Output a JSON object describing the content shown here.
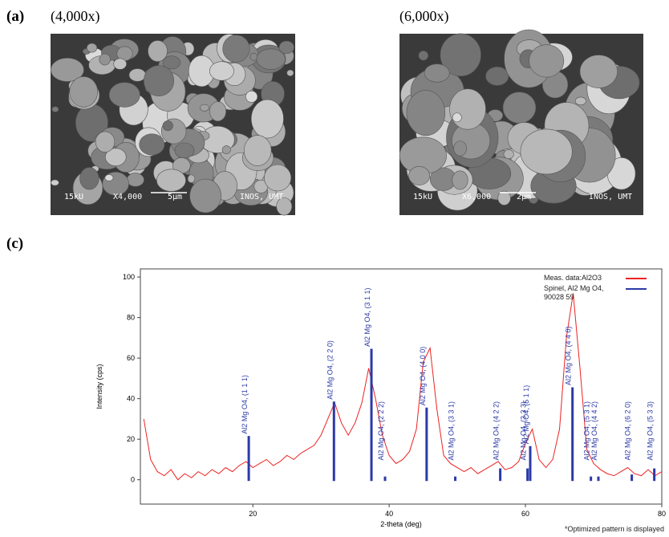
{
  "panels": {
    "a": "(a)",
    "c": "(c)"
  },
  "images": [
    {
      "magnification": "(4,000x)",
      "overlay": [
        "15kU",
        "X4,000",
        "5µm",
        "INOS, UMT"
      ]
    },
    {
      "magnification": "(6,000x)",
      "overlay": [
        "15kU",
        "X6,000",
        "2µm",
        "INOS, UMT"
      ]
    }
  ],
  "chart_data": {
    "type": "line",
    "xlabel": "2-theta (deg)",
    "ylabel": "Intensity (cps)",
    "footnote": "*Optimized pattern is displayed",
    "xlim": [
      3.5,
      80
    ],
    "ylim": [
      -12,
      104
    ],
    "xticks": [
      20,
      40,
      60,
      80
    ],
    "yticks": [
      0,
      20,
      40,
      60,
      80,
      100
    ],
    "grid": false,
    "legend": "top-right",
    "series": [
      {
        "name": "Meas. data:Al2O3",
        "color": "#ee2222",
        "type": "line",
        "x": [
          4,
          5,
          6,
          7,
          8,
          9,
          10,
          11,
          12,
          13,
          14,
          15,
          16,
          17,
          18,
          19,
          20,
          21,
          22,
          23,
          24,
          25,
          26,
          27,
          28,
          29,
          30,
          31,
          32,
          33,
          34,
          35,
          36,
          37,
          38,
          39,
          40,
          41,
          42,
          43,
          44,
          45,
          46,
          47,
          48,
          49,
          50,
          51,
          52,
          53,
          54,
          55,
          56,
          57,
          58,
          59,
          60,
          61,
          62,
          63,
          64,
          65,
          66,
          67,
          68,
          69,
          70,
          71,
          72,
          73,
          74,
          75,
          76,
          77,
          78,
          79,
          80
        ],
        "values": [
          30,
          10,
          4,
          2,
          5,
          0,
          3,
          1,
          4,
          2,
          5,
          3,
          6,
          4,
          7,
          9,
          6,
          8,
          10,
          7,
          9,
          12,
          10,
          13,
          15,
          17,
          22,
          30,
          38,
          28,
          22,
          28,
          38,
          55,
          40,
          22,
          12,
          8,
          10,
          14,
          25,
          58,
          65,
          35,
          12,
          8,
          6,
          4,
          6,
          3,
          5,
          7,
          9,
          5,
          6,
          9,
          18,
          25,
          10,
          6,
          10,
          25,
          70,
          92,
          55,
          15,
          8,
          5,
          3,
          2,
          4,
          6,
          3,
          2,
          5,
          2,
          4
        ]
      },
      {
        "name": "Spinel, Al2 Mg O4, 90028 59",
        "color": "#2b3aa8",
        "type": "stick",
        "x": [
          19.4,
          31.9,
          37.4,
          39.4,
          45.5,
          49.7,
          56.3,
          60.7,
          60.3,
          66.9,
          69.6,
          70.7,
          75.6,
          78.9
        ],
        "values": [
          21,
          38,
          64,
          1,
          35,
          1,
          5,
          16,
          5,
          45,
          1,
          1,
          2,
          5
        ],
        "labels": [
          "Al2 Mg O4, (1 1 1)",
          "Al2 Mg O4, (2 2 0)",
          "Al2 Mg O4, (3 1 1)",
          "Al2 Mg O4, (2 2 2)",
          "Al2 Mg O4, (4 0 0)",
          "Al2 Mg O4, (3 3 1)",
          "Al2 Mg O4, (4 2 2)",
          "Al2 Mg O4, (5 1 1)",
          "Al2 Mg O4, (3 3 3)",
          "Al2 Mg O4, (4 4 0)",
          "Al2 Mg O4, (5 3 1)",
          "Al2 Mg O4, (4 4 2)",
          "Al2 Mg O4, (6 2 0)",
          "Al2 Mg O4, (5 3 3)"
        ]
      }
    ]
  }
}
